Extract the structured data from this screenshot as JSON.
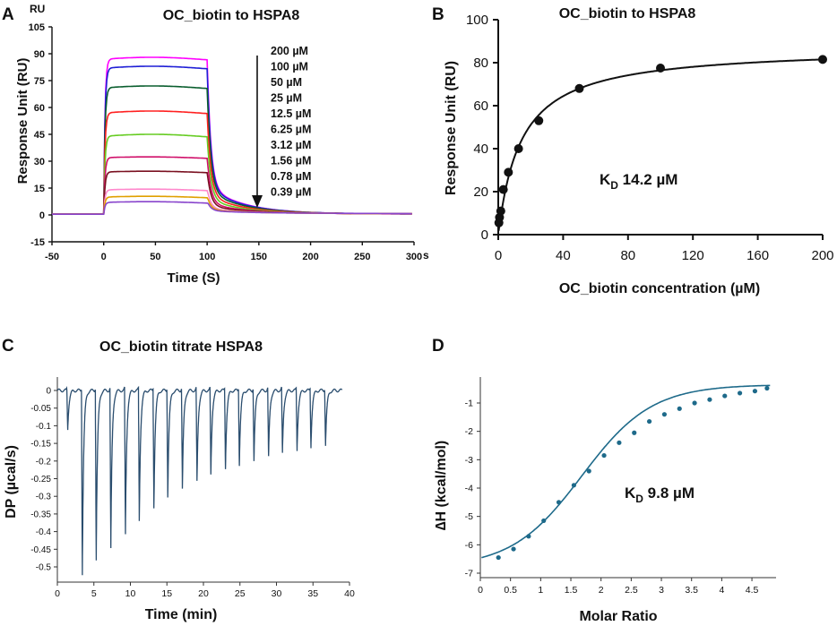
{
  "chart_data": [
    {
      "panel": "A",
      "type": "line",
      "title": "OC_biotin to HSPA8",
      "xlabel": "Time (S)",
      "x_unit": "s",
      "ylabel": "Response Unit (RU)",
      "y_unit": "RU",
      "xlim": [
        -50,
        300
      ],
      "ylim": [
        -15,
        105
      ],
      "xticks": [
        -50,
        0,
        50,
        100,
        150,
        200,
        250,
        300
      ],
      "yticks": [
        -15,
        0,
        15,
        30,
        45,
        60,
        75,
        90,
        105
      ],
      "injection_window": [
        0,
        100
      ],
      "series": [
        {
          "name": "200 µM",
          "plateau": 87,
          "color": "#ff00ff"
        },
        {
          "name": "100 µM",
          "plateau": 82,
          "color": "#1f1fd6"
        },
        {
          "name": "50 µM",
          "plateau": 71,
          "color": "#0a5e2e"
        },
        {
          "name": "25 µM",
          "plateau": 57,
          "color": "#ff2020"
        },
        {
          "name": "12.5 µM",
          "plateau": 44,
          "color": "#66cc22"
        },
        {
          "name": "6.25 µM",
          "plateau": 32,
          "color": "#d0106a"
        },
        {
          "name": "3.12 µM",
          "plateau": 24,
          "color": "#7a1020"
        },
        {
          "name": "1.56 µM",
          "plateau": 14,
          "color": "#ff88cc"
        },
        {
          "name": "0.78 µM",
          "plateau": 10,
          "color": "#e0a000"
        },
        {
          "name": "0.39 µM",
          "plateau": 7,
          "color": "#8844cc"
        }
      ],
      "arrow_note": "decreasing concentration"
    },
    {
      "panel": "B",
      "type": "scatter",
      "title": "OC_biotin to HSPA8",
      "xlabel": "OC_biotin concentration (µM)",
      "ylabel": "Response Unit (RU)",
      "xlim": [
        0,
        200
      ],
      "ylim": [
        0,
        100
      ],
      "xticks": [
        0,
        40,
        80,
        120,
        160,
        200
      ],
      "yticks": [
        0,
        20,
        40,
        60,
        80,
        100
      ],
      "points": {
        "x": [
          0.39,
          0.78,
          1.56,
          3.12,
          6.25,
          12.5,
          25,
          50,
          100,
          200
        ],
        "y": [
          5.5,
          8,
          11,
          21,
          29,
          40,
          53,
          68,
          77.5,
          81.5
        ]
      },
      "fit": {
        "model": "one-site binding",
        "Rmax": 87.3,
        "KD": 14.2
      },
      "annotation": {
        "k": "K",
        "sub": "D",
        "value": "14.2 µM"
      }
    },
    {
      "panel": "C",
      "type": "line",
      "title": "OC_biotin titrate HSPA8",
      "xlabel": "Time (min)",
      "ylabel": "DP (µcal/s)",
      "xlim": [
        0,
        40
      ],
      "ylim": [
        -0.53,
        0.02
      ],
      "xticks": [
        0,
        5,
        10,
        15,
        20,
        25,
        30,
        35,
        40
      ],
      "yticks": [
        "0",
        "-0.05",
        "-0.1",
        "-0.15",
        "-0.2",
        "-0.25",
        "-0.3",
        "-0.35",
        "-0.4",
        "-0.45",
        "-0.5"
      ],
      "ytick_values": [
        0,
        -0.05,
        -0.1,
        -0.15,
        -0.2,
        -0.25,
        -0.3,
        -0.35,
        -0.4,
        -0.45,
        -0.5
      ],
      "baseline": 0,
      "injections": {
        "time": [
          1.3,
          3.3,
          5.2,
          7.2,
          9.2,
          11.1,
          13.1,
          15.0,
          17.0,
          19.0,
          20.9,
          22.9,
          24.8,
          26.8,
          28.8,
          30.7,
          32.7,
          34.6,
          36.6
        ],
        "peak": [
          -0.11,
          -0.52,
          -0.48,
          -0.45,
          -0.41,
          -0.37,
          -0.33,
          -0.3,
          -0.28,
          -0.26,
          -0.24,
          -0.22,
          -0.21,
          -0.2,
          -0.19,
          -0.18,
          -0.17,
          -0.16,
          -0.155
        ]
      },
      "color": "#2a4d6e"
    },
    {
      "panel": "D",
      "type": "scatter",
      "xlabel": "Molar Ratio",
      "ylabel": "∆H (kcal/mol)",
      "xlim": [
        0,
        4.9
      ],
      "ylim": [
        -7,
        -0.3
      ],
      "xticks": [
        "0",
        "0.5",
        "1",
        "1.5",
        "2",
        "2.5",
        "3",
        "3.5",
        "4",
        "4.5"
      ],
      "xtick_values": [
        0,
        0.5,
        1,
        1.5,
        2,
        2.5,
        3,
        3.5,
        4,
        4.5
      ],
      "yticks": [
        "-1",
        "-2",
        "-3",
        "-4",
        "-5",
        "-6",
        "-7"
      ],
      "ytick_values": [
        -1,
        -2,
        -3,
        -4,
        -5,
        -6,
        -7
      ],
      "points": {
        "x": [
          0.3,
          0.55,
          0.8,
          1.05,
          1.3,
          1.55,
          1.8,
          2.05,
          2.3,
          2.55,
          2.8,
          3.05,
          3.3,
          3.55,
          3.8,
          4.05,
          4.3,
          4.55,
          4.75
        ],
        "y": [
          -6.45,
          -6.15,
          -5.7,
          -5.15,
          -4.5,
          -3.9,
          -3.4,
          -2.85,
          -2.4,
          -2.05,
          -1.65,
          -1.4,
          -1.2,
          -1.0,
          -0.88,
          -0.75,
          -0.65,
          -0.58,
          -0.48
        ]
      },
      "fit": {
        "model": "sigmoid",
        "top": -6.8,
        "bottom": -0.35,
        "x50": 1.68,
        "width": 0.58
      },
      "color": "#1e6a8a",
      "annotation": {
        "k": "K",
        "sub": "D",
        "value": "9.8 µM"
      }
    }
  ],
  "panels": {
    "A": "A",
    "B": "B",
    "C": "C",
    "D": "D"
  },
  "panelA": {
    "title": "OC_biotin to HSPA8",
    "y_unit": "RU",
    "x_unit": "s",
    "xlabel": "Time (S)",
    "ylabel": "Response Unit (RU)"
  },
  "panelB": {
    "title": "OC_biotin to HSPA8",
    "xlabel": "OC_biotin concentration (µM)",
    "ylabel": "Response Unit (RU)",
    "kd_k": "K",
    "kd_sub": "D",
    "kd_value": " 14.2 µM"
  },
  "panelC": {
    "title": "OC_biotin titrate HSPA8",
    "xlabel": "Time (min)",
    "ylabel": "DP (µcal/s)"
  },
  "panelD": {
    "xlabel": "Molar Ratio",
    "ylabel": "∆H (kcal/mol)",
    "kd_k": "K",
    "kd_sub": "D",
    "kd_value": " 9.8 µM"
  }
}
